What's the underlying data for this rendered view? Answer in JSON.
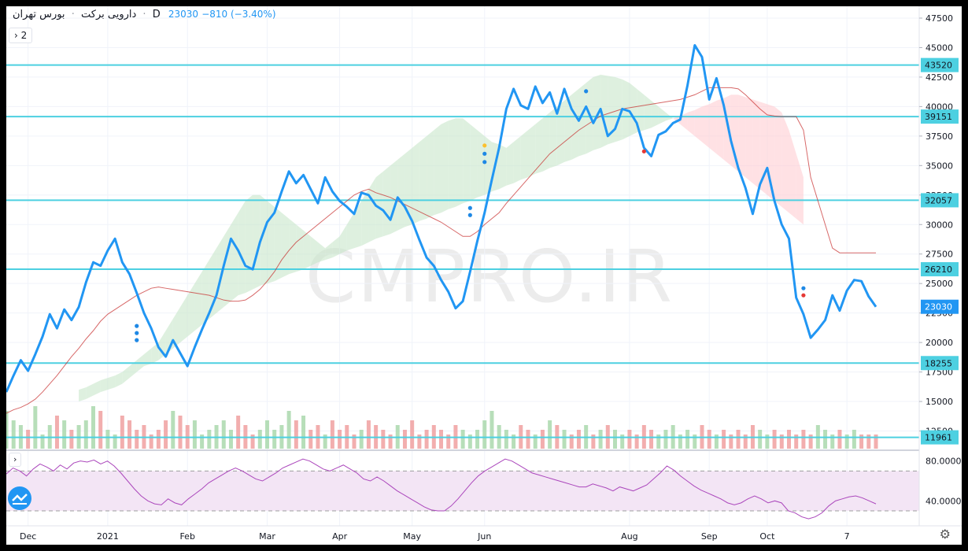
{
  "header": {
    "title": "دارویی برکت",
    "sep1": "·",
    "market": "بورس تهران",
    "sep2": "·",
    "interval": "D",
    "last_price": "23030",
    "change": "−810 (−3.40%)"
  },
  "watermark": "CMPRO.IR",
  "legend_toggle": "2",
  "rsi_toggle": "›",
  "legend_arrow": "›",
  "colors": {
    "price_line": "#2196f3",
    "level_line": "#4dd0e1",
    "baseline": "#c62828",
    "cloud_bull": "#c8e6c9",
    "cloud_bear": "#ffcdd2",
    "vol_up": "#a5d6a7",
    "vol_down": "#ef9a9a",
    "rsi_line": "#ab47bc",
    "rsi_band": "#f3e5f5"
  },
  "chart_data": [
    {
      "type": "line",
      "ylim": [
        11000,
        48500
      ],
      "y_ticks": [
        47500,
        45000,
        42500,
        40000,
        37500,
        35000,
        32500,
        30000,
        27500,
        25000,
        22500,
        20000,
        17500,
        15000,
        12500
      ],
      "x_tick_labels": [
        "Dec",
        "2021",
        "Feb",
        "Mar",
        "Apr",
        "May",
        "Jun",
        "Aug",
        "Sep",
        "Oct",
        "7"
      ],
      "levels": [
        43520,
        39151,
        32057,
        26210,
        18255,
        11961
      ],
      "current_price": 23030,
      "series": [
        {
          "role": "price",
          "values": [
            15800,
            17200,
            18500,
            17600,
            19000,
            20500,
            22400,
            21200,
            22800,
            21900,
            23000,
            25100,
            26800,
            26500,
            27800,
            28800,
            26800,
            25800,
            24200,
            22500,
            21200,
            19600,
            18800,
            20200,
            19100,
            18000,
            19600,
            21100,
            22500,
            24000,
            26500,
            28800,
            27800,
            26500,
            26200,
            28500,
            30200,
            31000,
            32800,
            34500,
            33500,
            34200,
            33000,
            31800,
            34000,
            32800,
            32000,
            31500,
            30900,
            32700,
            32500,
            31600,
            31200,
            30400,
            32300,
            31500,
            30300,
            28700,
            27200,
            26500,
            25300,
            24300,
            22900,
            23500,
            26000,
            28600,
            31000,
            33800,
            36500,
            39800,
            41500,
            40100,
            39800,
            41700,
            40300,
            41200,
            39400,
            41500,
            39800,
            38800,
            40000,
            38600,
            39800,
            37500,
            38100,
            39800,
            39600,
            38600,
            36500,
            35800,
            37600,
            37900,
            38600,
            38900,
            41800,
            45200,
            44200,
            40600,
            42400,
            40100,
            37100,
            34800,
            33100,
            30900,
            33400,
            34800,
            32000,
            30000,
            28800,
            23800,
            22400,
            20400,
            21100,
            21900,
            24000,
            22700,
            24400,
            25300,
            25200,
            23900,
            23030
          ]
        },
        {
          "role": "baseline",
          "values": [
            14000,
            14300,
            14500,
            14800,
            15200,
            15800,
            16500,
            17200,
            18000,
            18800,
            19500,
            20300,
            21000,
            21800,
            22400,
            22800,
            23200,
            23600,
            24000,
            24300,
            24600,
            24700,
            24600,
            24500,
            24400,
            24300,
            24200,
            24100,
            24000,
            23800,
            23600,
            23500,
            23500,
            23600,
            24000,
            24500,
            25200,
            26000,
            27000,
            27800,
            28500,
            29000,
            29500,
            30000,
            30500,
            31000,
            31500,
            32000,
            32500,
            32800,
            33000,
            32700,
            32500,
            32300,
            32000,
            31700,
            31400,
            31100,
            30800,
            30500,
            30200,
            29800,
            29400,
            29000,
            29000,
            29400,
            30000,
            30500,
            31000,
            31800,
            32500,
            33200,
            33900,
            34600,
            35300,
            36000,
            36500,
            37000,
            37500,
            38000,
            38400,
            38800,
            39200,
            39400,
            39600,
            39800,
            39900,
            40000,
            40100,
            40200,
            40300,
            40400,
            40500,
            40600,
            40800,
            41000,
            41300,
            41600,
            41600,
            41600,
            41600,
            41500,
            41000,
            40400,
            39800,
            39300,
            39200,
            39150,
            39150,
            39150,
            38000,
            34000,
            32000,
            30000,
            28000,
            27600,
            27600,
            27600,
            27600,
            27600,
            27600
          ]
        },
        {
          "role": "cloud_a",
          "values": [
            16000,
            16200,
            16500,
            16800,
            17000,
            17200,
            17500,
            18000,
            18500,
            19000,
            19500,
            20000,
            21000,
            22000,
            23000,
            24000,
            25000,
            26000,
            27000,
            28000,
            29000,
            30000,
            31000,
            32000,
            32500,
            32500,
            32000,
            31500,
            31000,
            30500,
            30000,
            29500,
            29000,
            28500,
            28000,
            28500,
            29000,
            30000,
            31000,
            32000,
            33000,
            34000,
            34500,
            35000,
            35500,
            36000,
            36500,
            37000,
            37500,
            38000,
            38500,
            38800,
            39000,
            39000,
            38500,
            38000,
            37500,
            37000,
            36800,
            36500,
            37000,
            37500,
            38000,
            38500,
            39000,
            39500,
            40000,
            40500,
            41000,
            41500,
            42000,
            42500,
            42700,
            42600,
            42500,
            42300,
            42000,
            41500,
            41000,
            40500,
            40000,
            39500,
            39000,
            38500,
            38000,
            37500,
            37000,
            36500,
            36000,
            35500,
            35000,
            34500,
            34000,
            33500,
            33000,
            32500,
            32000,
            31500,
            31000,
            30500,
            30000
          ]
        },
        {
          "role": "cloud_b",
          "values": [
            15000,
            15200,
            15500,
            15800,
            16000,
            16200,
            16500,
            17000,
            17500,
            18000,
            18200,
            18500,
            19000,
            19500,
            20000,
            20500,
            21000,
            21500,
            22000,
            22500,
            23000,
            23500,
            24000,
            24200,
            24500,
            24800,
            25000,
            25200,
            25500,
            25800,
            26000,
            26200,
            26500,
            26800,
            27000,
            27200,
            27500,
            27800,
            28000,
            28200,
            28500,
            28800,
            29000,
            29200,
            29500,
            29800,
            30000,
            30300,
            30500,
            30800,
            31000,
            31300,
            31500,
            31800,
            32000,
            32300,
            32500,
            32800,
            33000,
            33300,
            33500,
            33800,
            34000,
            34300,
            34500,
            34800,
            35000,
            35300,
            35500,
            35800,
            36000,
            36300,
            36500,
            36800,
            37000,
            37200,
            37500,
            37800,
            38000,
            38200,
            38500,
            38800,
            39000,
            39200,
            39500,
            39700,
            40000,
            40200,
            40500,
            40700,
            41000,
            41000,
            40800,
            40600,
            40400,
            40200,
            40000,
            39500,
            38000,
            36000,
            34000
          ]
        },
        {
          "role": "rsi",
          "ylim": [
            15,
            90
          ],
          "y_ticks": [
            80,
            40
          ],
          "bands": [
            70,
            30
          ],
          "values": [
            67,
            73,
            70,
            65,
            72,
            77,
            74,
            70,
            76,
            72,
            78,
            80,
            79,
            81,
            77,
            80,
            75,
            68,
            60,
            52,
            45,
            40,
            37,
            36,
            42,
            38,
            36,
            42,
            47,
            52,
            58,
            62,
            66,
            70,
            73,
            70,
            66,
            62,
            60,
            64,
            68,
            73,
            76,
            79,
            82,
            80,
            76,
            72,
            70,
            73,
            76,
            72,
            68,
            62,
            60,
            64,
            60,
            55,
            50,
            46,
            42,
            38,
            34,
            31,
            30,
            30,
            35,
            42,
            50,
            58,
            65,
            70,
            74,
            78,
            82,
            80,
            76,
            72,
            68,
            66,
            64,
            62,
            60,
            58,
            56,
            54,
            54,
            57,
            55,
            53,
            50,
            54,
            52,
            50,
            53,
            56,
            62,
            68,
            75,
            71,
            65,
            60,
            55,
            51,
            48,
            45,
            42,
            38,
            36,
            38,
            42,
            45,
            42,
            38,
            40,
            38,
            30,
            28,
            24,
            22,
            24,
            28,
            35,
            40,
            42,
            44,
            45,
            43,
            40,
            37
          ]
        },
        {
          "role": "volume",
          "values": [
            8,
            6,
            5,
            4,
            9,
            3,
            5,
            7,
            6,
            4,
            5,
            6,
            9,
            8,
            4,
            3,
            7,
            6,
            4,
            5,
            3,
            4,
            6,
            8,
            7,
            5,
            6,
            3,
            4,
            5,
            6,
            4,
            7,
            5,
            3,
            4,
            6,
            4,
            5,
            8,
            6,
            7,
            4,
            5,
            3,
            6,
            4,
            5,
            3,
            4,
            6,
            5,
            4,
            3,
            5,
            4,
            6,
            3,
            4,
            5,
            4,
            3,
            5,
            4,
            3,
            4,
            6,
            8,
            5,
            4,
            3,
            5,
            4,
            3,
            4,
            6,
            5,
            4,
            3,
            4,
            5,
            3,
            4,
            5,
            4,
            3,
            4,
            3,
            5,
            4,
            3,
            4,
            5,
            3,
            4,
            3,
            5,
            4,
            3,
            4,
            3,
            4,
            3,
            5,
            4,
            3,
            4,
            3,
            4,
            3,
            4,
            3,
            5,
            4,
            3,
            4,
            3,
            4,
            3,
            3,
            3
          ]
        }
      ]
    }
  ],
  "markers": {
    "blue_dots": [
      [
        18,
        21400
      ],
      [
        18,
        20800
      ],
      [
        18,
        20200
      ],
      [
        64,
        31400
      ],
      [
        64,
        30800
      ],
      [
        66,
        36000
      ],
      [
        66,
        35300
      ],
      [
        80,
        41300
      ],
      [
        110,
        24600
      ]
    ],
    "yellow_dots": [
      [
        66,
        36700
      ]
    ],
    "red_dots": [
      [
        88,
        36200
      ],
      [
        110,
        24000
      ]
    ]
  }
}
